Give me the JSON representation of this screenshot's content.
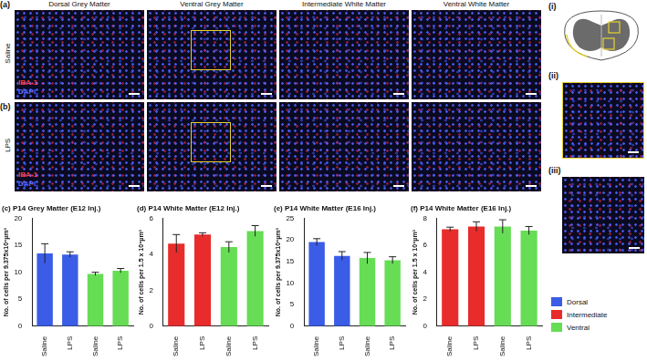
{
  "figure": {
    "panel_labels": {
      "a": "(a)",
      "b": "(b)",
      "i": "(i)",
      "ii": "(ii)",
      "iii": "(iii)"
    },
    "columns": [
      "Dorsal Grey Matter",
      "Ventral Grey Matter",
      "Intermediate White Matter",
      "Ventral White Matter"
    ],
    "rows": [
      "Saline",
      "LPS"
    ],
    "stains": [
      {
        "name": "IBA-1",
        "color": "#ff3b3b"
      },
      {
        "name": "DAPI",
        "color": "#4f6bff"
      }
    ],
    "legend": [
      {
        "name": "Dorsal",
        "color": "#3a5ce6"
      },
      {
        "name": "Intermediate",
        "color": "#e82c2c"
      },
      {
        "name": "Ventral",
        "color": "#66dd55"
      }
    ]
  },
  "chart_data": [
    {
      "type": "bar",
      "panel": "(c)",
      "title": "P14 Grey Matter (E12 Inj.)",
      "y_label": "No. of cells per 9.375x10⁶µm³",
      "categories": [
        "Saline",
        "LPS",
        "Saline",
        "LPS"
      ],
      "values": [
        13.5,
        13.3,
        9.7,
        10.3
      ],
      "errors": [
        1.8,
        0.5,
        0.3,
        0.4
      ],
      "colors": [
        "#3a5ce6",
        "#3a5ce6",
        "#66dd55",
        "#66dd55"
      ],
      "ylim": [
        0,
        20
      ],
      "yticks": [
        0,
        5,
        10,
        15,
        20
      ],
      "grid": false
    },
    {
      "type": "bar",
      "panel": "(d)",
      "title": "P14 White Matter (E12 Inj.)",
      "y_label": "No. of cells per 1.5 x 10⁶µm³",
      "categories": [
        "Saline",
        "LPS",
        "Saline",
        "LPS"
      ],
      "values": [
        4.6,
        5.1,
        4.4,
        5.3
      ],
      "errors": [
        0.5,
        0.1,
        0.3,
        0.3
      ],
      "colors": [
        "#e82c2c",
        "#e82c2c",
        "#66dd55",
        "#66dd55"
      ],
      "ylim": [
        0,
        6
      ],
      "yticks": [
        0,
        2,
        4,
        6
      ],
      "grid": false
    },
    {
      "type": "bar",
      "panel": "(e)",
      "title": "P14 White Matter (E16 Inj.)",
      "y_label": "No. of cells per 9.375x10⁶µm³",
      "categories": [
        "Saline",
        "LPS",
        "Saline",
        "LPS"
      ],
      "values": [
        19.5,
        16.3,
        15.8,
        15.3
      ],
      "errors": [
        0.8,
        1.0,
        1.3,
        0.8
      ],
      "colors": [
        "#3a5ce6",
        "#3a5ce6",
        "#66dd55",
        "#66dd55"
      ],
      "ylim": [
        0,
        25
      ],
      "yticks": [
        0,
        5,
        10,
        15,
        20,
        25
      ],
      "grid": false
    },
    {
      "type": "bar",
      "panel": "(f)",
      "title": "P14 White Matter (E16 Inj.)",
      "y_label": "No. of cells per 1.5 x 10⁶µm³",
      "categories": [
        "Saline",
        "LPS",
        "Saline",
        "LPS"
      ],
      "values": [
        7.2,
        7.4,
        7.4,
        7.1
      ],
      "errors": [
        0.15,
        0.35,
        0.5,
        0.3
      ],
      "colors": [
        "#e82c2c",
        "#e82c2c",
        "#66dd55",
        "#66dd55"
      ],
      "ylim": [
        0,
        8
      ],
      "yticks": [
        0,
        2,
        4,
        6,
        8
      ],
      "grid": false
    }
  ]
}
